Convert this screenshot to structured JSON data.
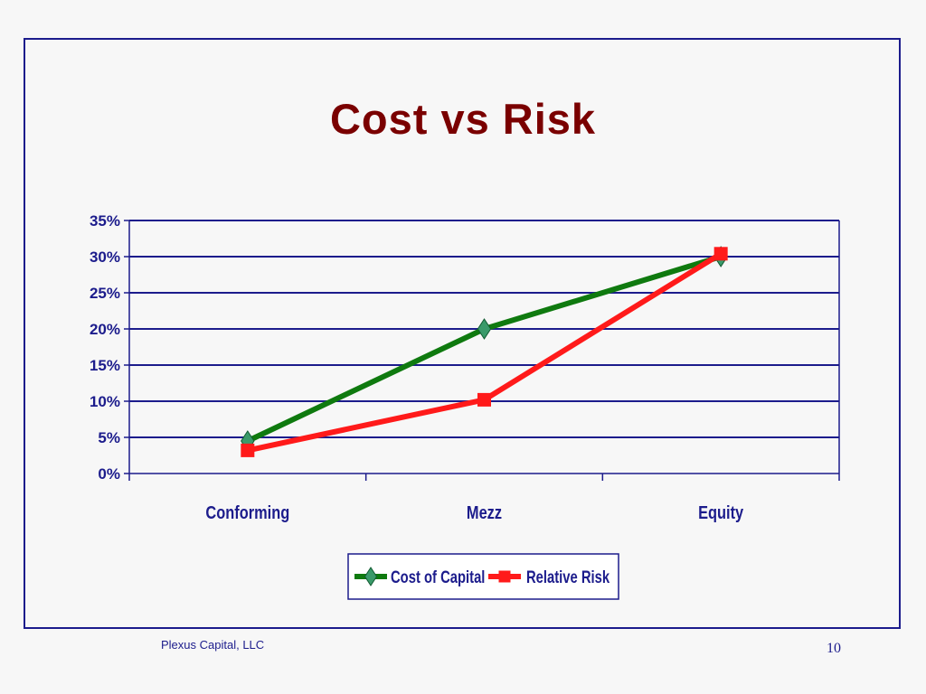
{
  "slide": {
    "footer_left": "Plexus Capital, LLC",
    "page_number": "10"
  },
  "colors": {
    "title": "#7a0000",
    "axis": "#1c1c8c",
    "frame": "#1c1c8c",
    "cost_line": "#0f7a0f",
    "cost_marker": "#3a9a6a",
    "risk_line": "#ff1a1a"
  },
  "chart_data": {
    "type": "line",
    "title": "Cost vs Risk",
    "xlabel": "",
    "ylabel": "",
    "categories": [
      "Conforming",
      "Mezz",
      "Equity"
    ],
    "ylim": [
      0,
      35
    ],
    "y_ticks": [
      "0%",
      "5%",
      "10%",
      "15%",
      "20%",
      "25%",
      "30%",
      "35%"
    ],
    "grid": true,
    "legend_position": "bottom",
    "series": [
      {
        "name": "Cost of Capital",
        "values": [
          4.5,
          20,
          30
        ],
        "marker": "diamond",
        "color_key": "cost_line"
      },
      {
        "name": "Relative Risk",
        "values": [
          3.2,
          10.2,
          30.4
        ],
        "marker": "square",
        "color_key": "risk_line"
      }
    ]
  }
}
